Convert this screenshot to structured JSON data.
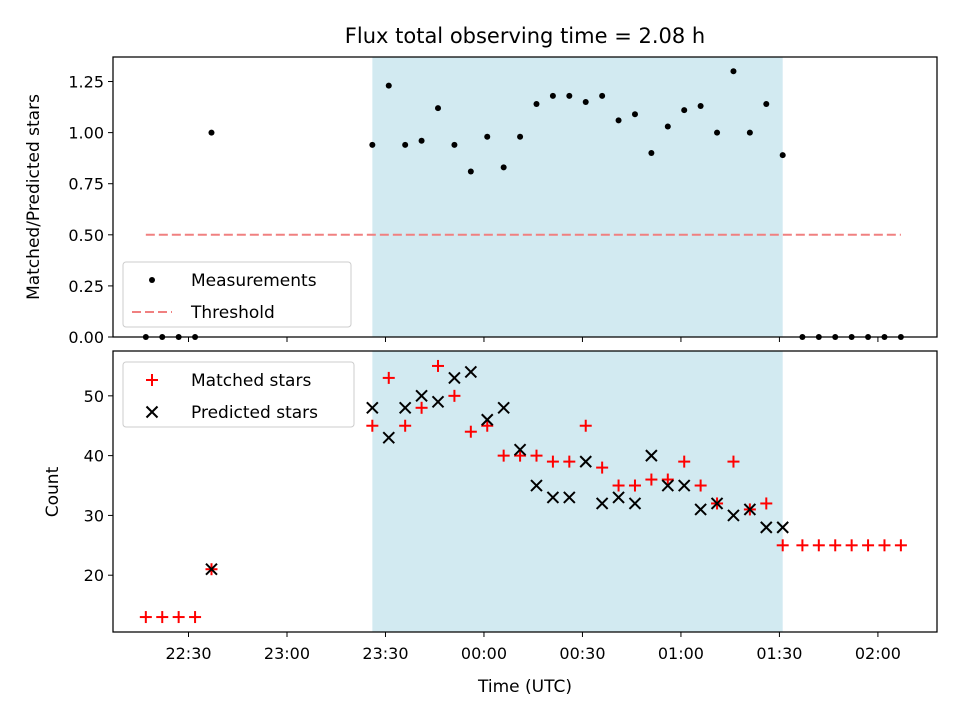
{
  "title": "Flux total observing time = 2.08 h",
  "chart_data": [
    {
      "type": "scatter",
      "panel": "top",
      "ylabel": "Matched/Predicted stars",
      "xlabel": "",
      "xlim": [
        "22:07",
        "02:18"
      ],
      "ylim": [
        0,
        1.37
      ],
      "yticks": [
        0,
        0.25,
        0.5,
        0.75,
        1.0,
        1.25
      ],
      "ytick_labels": [
        "0.00",
        "0.25",
        "0.50",
        "0.75",
        "1.00",
        "1.25"
      ],
      "grid": false,
      "legend": "lower-left",
      "shaded_region": {
        "x0": "23:26",
        "x1": "01:31",
        "color": "#add8e6"
      },
      "series": [
        {
          "name": "Measurements",
          "marker": "dot",
          "color": "#000000",
          "x": [
            "22:17",
            "22:22",
            "22:27",
            "22:32",
            "22:37",
            "23:26",
            "23:31",
            "23:36",
            "23:41",
            "23:46",
            "23:51",
            "23:56",
            "00:01",
            "00:06",
            "00:11",
            "00:16",
            "00:21",
            "00:26",
            "00:31",
            "00:36",
            "00:41",
            "00:46",
            "00:51",
            "00:56",
            "01:01",
            "01:06",
            "01:11",
            "01:16",
            "01:21",
            "01:26",
            "01:31",
            "01:37",
            "01:42",
            "01:47",
            "01:52",
            "01:57",
            "02:02",
            "02:07"
          ],
          "y": [
            0,
            0,
            0,
            0,
            1.0,
            0.94,
            1.23,
            0.94,
            0.96,
            1.12,
            0.94,
            0.81,
            0.98,
            0.83,
            0.98,
            1.14,
            1.18,
            1.18,
            1.15,
            1.18,
            1.06,
            1.09,
            0.9,
            1.03,
            1.11,
            1.13,
            1.0,
            1.3,
            1.0,
            1.14,
            0.89,
            0,
            0,
            0,
            0,
            0,
            0,
            0
          ]
        },
        {
          "name": "Threshold",
          "style": "dashed-line",
          "color": "#f08080",
          "x": [
            "22:17",
            "02:07"
          ],
          "y": [
            0.5,
            0.5
          ]
        }
      ]
    },
    {
      "type": "scatter",
      "panel": "bottom",
      "ylabel": "Count",
      "xlabel": "Time (UTC)",
      "xlim": [
        "22:07",
        "02:18"
      ],
      "ylim": [
        10.5,
        57.5
      ],
      "yticks": [
        20,
        30,
        40,
        50
      ],
      "ytick_labels": [
        "20",
        "30",
        "40",
        "50"
      ],
      "xticks": [
        "22:30",
        "23:00",
        "23:30",
        "00:00",
        "00:30",
        "01:00",
        "01:30",
        "02:00"
      ],
      "xtick_labels": [
        "22:30",
        "23:00",
        "23:30",
        "00:00",
        "00:30",
        "01:00",
        "01:30",
        "02:00"
      ],
      "grid": false,
      "legend": "upper-left",
      "shaded_region": {
        "x0": "23:26",
        "x1": "01:31",
        "color": "#add8e6"
      },
      "series": [
        {
          "name": "Matched stars",
          "marker": "plus",
          "color": "#ff0000",
          "x": [
            "22:17",
            "22:22",
            "22:27",
            "22:32",
            "22:37",
            "23:26",
            "23:31",
            "23:36",
            "23:41",
            "23:46",
            "23:51",
            "23:56",
            "00:01",
            "00:06",
            "00:11",
            "00:16",
            "00:21",
            "00:26",
            "00:31",
            "00:36",
            "00:41",
            "00:46",
            "00:51",
            "00:56",
            "01:01",
            "01:06",
            "01:11",
            "01:16",
            "01:21",
            "01:26",
            "01:31",
            "01:37",
            "01:42",
            "01:47",
            "01:52",
            "01:57",
            "02:02",
            "02:07"
          ],
          "y": [
            13,
            13,
            13,
            13,
            21,
            45,
            53,
            45,
            48,
            55,
            50,
            44,
            45,
            40,
            40,
            40,
            39,
            39,
            45,
            38,
            35,
            35,
            36,
            36,
            39,
            35,
            32,
            39,
            31,
            32,
            25,
            25,
            25,
            25,
            25,
            25,
            25,
            25
          ]
        },
        {
          "name": "Predicted stars",
          "marker": "x",
          "color": "#000000",
          "x": [
            "22:37",
            "23:26",
            "23:31",
            "23:36",
            "23:41",
            "23:46",
            "23:51",
            "23:56",
            "00:01",
            "00:06",
            "00:11",
            "00:16",
            "00:21",
            "00:26",
            "00:31",
            "00:36",
            "00:41",
            "00:46",
            "00:51",
            "00:56",
            "01:01",
            "01:06",
            "01:11",
            "01:16",
            "01:21",
            "01:26",
            "01:31"
          ],
          "y": [
            21,
            48,
            43,
            48,
            50,
            49,
            53,
            54,
            46,
            48,
            41,
            35,
            33,
            33,
            39,
            32,
            33,
            32,
            40,
            35,
            35,
            31,
            32,
            30,
            31,
            28,
            28
          ]
        }
      ]
    }
  ]
}
